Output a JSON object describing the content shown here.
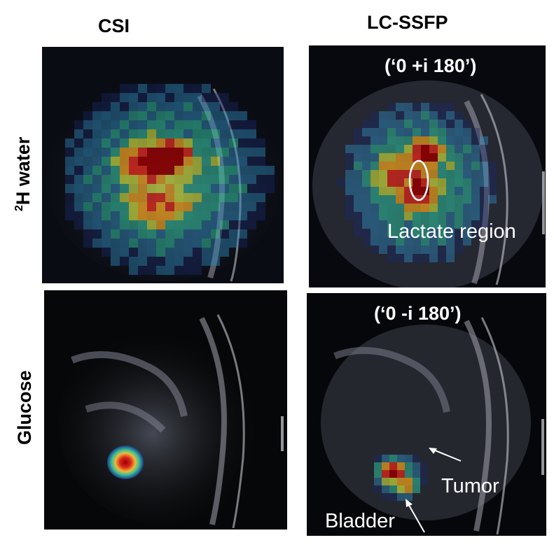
{
  "columns": {
    "left": "CSI",
    "right": "LC-SSFP"
  },
  "rows": {
    "top_prefix": "2",
    "top_rest": "H water",
    "bottom": "Glucose"
  },
  "panels": {
    "top_right_title": "(‘0 +i 180’)",
    "bottom_right_title": "(‘0 -i 180’)",
    "lactate_label": "Lactate region",
    "tumor_label": "Tumor",
    "bladder_label": "Bladder"
  },
  "colors": {
    "colormap": [
      "#1a2a6c",
      "#2e8bc0",
      "#2fc4a0",
      "#d7e83a",
      "#f3a21b",
      "#d6261b",
      "#8e0000"
    ],
    "annotation": "#ffffff"
  }
}
